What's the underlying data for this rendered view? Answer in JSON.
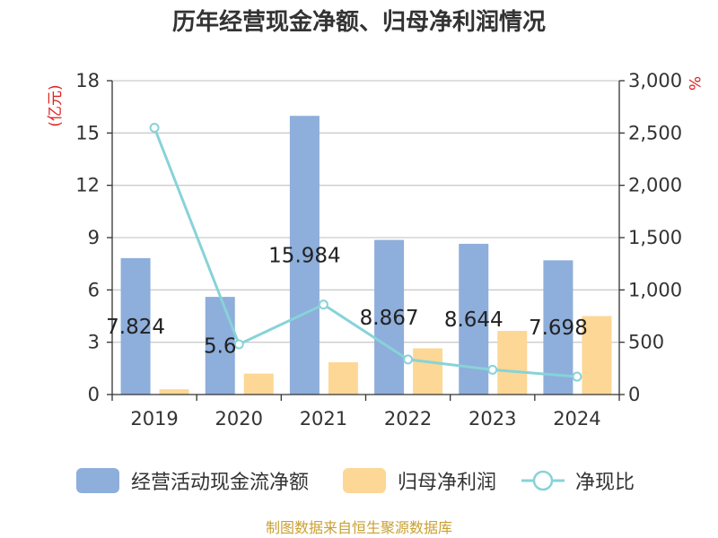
{
  "chart_data": {
    "type": "bar",
    "title": "历年经营现金净额、归母净利润情况",
    "categories": [
      "2019",
      "2020",
      "2021",
      "2022",
      "2023",
      "2024"
    ],
    "series": [
      {
        "name": "经营活动现金流净额",
        "type": "bar",
        "axis": "left",
        "values": [
          7.824,
          5.6,
          15.984,
          8.867,
          8.644,
          7.698
        ],
        "color": "#8eaedb"
      },
      {
        "name": "归母净利润",
        "type": "bar",
        "axis": "left",
        "values": [
          0.3,
          1.2,
          1.85,
          2.65,
          3.65,
          4.5
        ],
        "color": "#fdd795"
      },
      {
        "name": "净现比",
        "type": "line",
        "axis": "right",
        "values": [
          2550,
          480,
          860,
          335,
          237,
          171
        ],
        "color": "#87d3d8"
      }
    ],
    "data_labels": [
      "7.824",
      "5.6",
      "15.984",
      "8.867",
      "8.644",
      "7.698"
    ],
    "y_left": {
      "unit": "(亿元)",
      "ylim": [
        0,
        18
      ],
      "ticks": [
        "0",
        "3",
        "6",
        "9",
        "12",
        "15",
        "18"
      ]
    },
    "y_right": {
      "unit": "%",
      "ylim": [
        0,
        3000
      ],
      "ticks": [
        "0",
        "500",
        "1,000",
        "1,500",
        "2,000",
        "2,500",
        "3,000"
      ]
    },
    "grid": true,
    "legend_position": "bottom"
  },
  "source": "制图数据来自恒生聚源数据库"
}
